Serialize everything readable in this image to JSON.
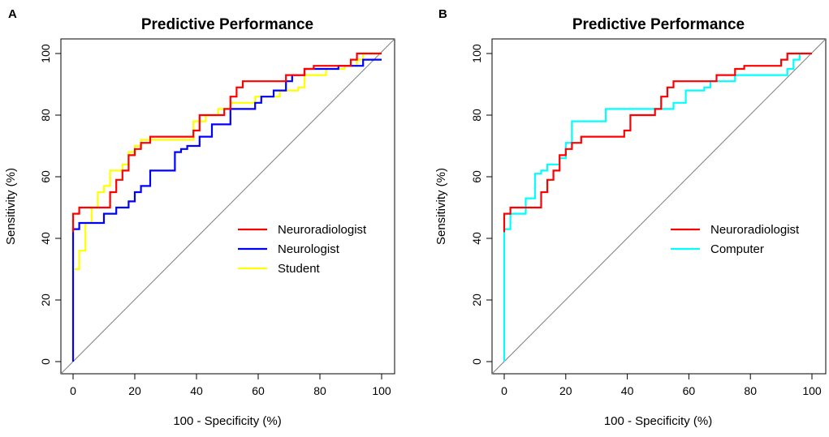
{
  "chart_data": [
    {
      "type": "line",
      "panel_label": "A",
      "title": "Predictive Performance",
      "xlabel": "100 - Specificity (%)",
      "ylabel": "Sensitivity (%)",
      "xlim": [
        0,
        100
      ],
      "ylim": [
        0,
        100
      ],
      "xticks": [
        "0",
        "20",
        "40",
        "60",
        "80",
        "100"
      ],
      "yticks": [
        "0",
        "20",
        "40",
        "60",
        "80",
        "100"
      ],
      "diagonal_color": "#808080",
      "legend_position": "center-right",
      "series": [
        {
          "name": "Neuroradiologist",
          "color": "#ff0000",
          "points": [
            [
              0,
              42
            ],
            [
              0,
              48
            ],
            [
              2,
              48
            ],
            [
              2,
              50
            ],
            [
              12,
              50
            ],
            [
              12,
              55
            ],
            [
              14,
              55
            ],
            [
              14,
              59
            ],
            [
              16,
              59
            ],
            [
              16,
              62
            ],
            [
              18,
              62
            ],
            [
              18,
              67
            ],
            [
              20,
              67
            ],
            [
              20,
              69
            ],
            [
              22,
              69
            ],
            [
              22,
              71
            ],
            [
              25,
              71
            ],
            [
              25,
              73
            ],
            [
              39,
              73
            ],
            [
              39,
              75
            ],
            [
              41,
              75
            ],
            [
              41,
              80
            ],
            [
              49,
              80
            ],
            [
              49,
              82
            ],
            [
              51,
              82
            ],
            [
              51,
              86
            ],
            [
              53,
              86
            ],
            [
              53,
              89
            ],
            [
              55,
              89
            ],
            [
              55,
              91
            ],
            [
              69,
              91
            ],
            [
              69,
              93
            ],
            [
              75,
              93
            ],
            [
              75,
              95
            ],
            [
              78,
              95
            ],
            [
              78,
              96
            ],
            [
              90,
              96
            ],
            [
              90,
              98
            ],
            [
              92,
              98
            ],
            [
              92,
              100
            ],
            [
              100,
              100
            ]
          ]
        },
        {
          "name": "Neurologist",
          "color": "#0000ff",
          "points": [
            [
              0,
              0
            ],
            [
              0,
              43
            ],
            [
              2,
              43
            ],
            [
              2,
              45
            ],
            [
              10,
              45
            ],
            [
              10,
              48
            ],
            [
              14,
              48
            ],
            [
              14,
              50
            ],
            [
              18,
              50
            ],
            [
              18,
              52
            ],
            [
              20,
              52
            ],
            [
              20,
              55
            ],
            [
              22,
              55
            ],
            [
              22,
              57
            ],
            [
              25,
              57
            ],
            [
              25,
              62
            ],
            [
              33,
              62
            ],
            [
              33,
              68
            ],
            [
              35,
              68
            ],
            [
              35,
              69
            ],
            [
              37,
              69
            ],
            [
              37,
              70
            ],
            [
              41,
              70
            ],
            [
              41,
              73
            ],
            [
              45,
              73
            ],
            [
              45,
              77
            ],
            [
              51,
              77
            ],
            [
              51,
              82
            ],
            [
              59,
              82
            ],
            [
              59,
              84
            ],
            [
              61,
              84
            ],
            [
              61,
              86
            ],
            [
              65,
              86
            ],
            [
              65,
              88
            ],
            [
              69,
              88
            ],
            [
              69,
              91
            ],
            [
              71,
              91
            ],
            [
              71,
              93
            ],
            [
              75,
              93
            ],
            [
              75,
              95
            ],
            [
              86,
              95
            ],
            [
              86,
              96
            ],
            [
              94,
              96
            ],
            [
              94,
              98
            ],
            [
              100,
              98
            ]
          ]
        },
        {
          "name": "Student",
          "color": "#ffff00",
          "points": [
            [
              0,
              30
            ],
            [
              2,
              30
            ],
            [
              2,
              36
            ],
            [
              4,
              36
            ],
            [
              4,
              45
            ],
            [
              6,
              45
            ],
            [
              6,
              50
            ],
            [
              8,
              50
            ],
            [
              8,
              55
            ],
            [
              10,
              55
            ],
            [
              10,
              57
            ],
            [
              12,
              57
            ],
            [
              12,
              62
            ],
            [
              16,
              62
            ],
            [
              16,
              64
            ],
            [
              18,
              64
            ],
            [
              18,
              68
            ],
            [
              20,
              68
            ],
            [
              20,
              70
            ],
            [
              22,
              70
            ],
            [
              22,
              72
            ],
            [
              39,
              72
            ],
            [
              39,
              78
            ],
            [
              43,
              78
            ],
            [
              43,
              80
            ],
            [
              47,
              80
            ],
            [
              47,
              82
            ],
            [
              51,
              82
            ],
            [
              51,
              84
            ],
            [
              59,
              84
            ],
            [
              59,
              86
            ],
            [
              67,
              86
            ],
            [
              67,
              88
            ],
            [
              73,
              88
            ],
            [
              73,
              89
            ],
            [
              75,
              89
            ],
            [
              75,
              93
            ],
            [
              82,
              93
            ],
            [
              82,
              95
            ],
            [
              88,
              95
            ],
            [
              88,
              96
            ],
            [
              92,
              96
            ],
            [
              92,
              98
            ],
            [
              94,
              98
            ],
            [
              94,
              100
            ],
            [
              100,
              100
            ]
          ]
        }
      ]
    },
    {
      "type": "line",
      "panel_label": "B",
      "title": "Predictive Performance",
      "xlabel": "100 - Specificity (%)",
      "ylabel": "Sensitivity (%)",
      "xlim": [
        0,
        100
      ],
      "ylim": [
        0,
        100
      ],
      "xticks": [
        "0",
        "20",
        "40",
        "60",
        "80",
        "100"
      ],
      "yticks": [
        "0",
        "20",
        "40",
        "60",
        "80",
        "100"
      ],
      "diagonal_color": "#808080",
      "legend_position": "center-right",
      "series": [
        {
          "name": "Neuroradiologist",
          "color": "#ff0000",
          "points": [
            [
              0,
              42
            ],
            [
              0,
              48
            ],
            [
              2,
              48
            ],
            [
              2,
              50
            ],
            [
              12,
              50
            ],
            [
              12,
              55
            ],
            [
              14,
              55
            ],
            [
              14,
              59
            ],
            [
              16,
              59
            ],
            [
              16,
              62
            ],
            [
              18,
              62
            ],
            [
              18,
              67
            ],
            [
              20,
              67
            ],
            [
              20,
              69
            ],
            [
              22,
              69
            ],
            [
              22,
              71
            ],
            [
              25,
              71
            ],
            [
              25,
              73
            ],
            [
              39,
              73
            ],
            [
              39,
              75
            ],
            [
              41,
              75
            ],
            [
              41,
              80
            ],
            [
              49,
              80
            ],
            [
              49,
              82
            ],
            [
              51,
              82
            ],
            [
              51,
              86
            ],
            [
              53,
              86
            ],
            [
              53,
              89
            ],
            [
              55,
              89
            ],
            [
              55,
              91
            ],
            [
              69,
              91
            ],
            [
              69,
              93
            ],
            [
              75,
              93
            ],
            [
              75,
              95
            ],
            [
              78,
              95
            ],
            [
              78,
              96
            ],
            [
              90,
              96
            ],
            [
              90,
              98
            ],
            [
              92,
              98
            ],
            [
              92,
              100
            ],
            [
              100,
              100
            ]
          ]
        },
        {
          "name": "Computer",
          "color": "#00ffff",
          "points": [
            [
              0,
              0
            ],
            [
              0,
              43
            ],
            [
              2,
              43
            ],
            [
              2,
              48
            ],
            [
              7,
              48
            ],
            [
              7,
              53
            ],
            [
              10,
              53
            ],
            [
              10,
              61
            ],
            [
              12,
              61
            ],
            [
              12,
              62
            ],
            [
              14,
              62
            ],
            [
              14,
              64
            ],
            [
              18,
              64
            ],
            [
              18,
              66
            ],
            [
              20,
              66
            ],
            [
              20,
              71
            ],
            [
              22,
              71
            ],
            [
              22,
              78
            ],
            [
              33,
              78
            ],
            [
              33,
              82
            ],
            [
              55,
              82
            ],
            [
              55,
              84
            ],
            [
              59,
              84
            ],
            [
              59,
              88
            ],
            [
              65,
              88
            ],
            [
              65,
              89
            ],
            [
              67,
              89
            ],
            [
              67,
              91
            ],
            [
              75,
              91
            ],
            [
              75,
              93
            ],
            [
              92,
              93
            ],
            [
              92,
              95
            ],
            [
              94,
              95
            ],
            [
              94,
              98
            ],
            [
              96,
              98
            ],
            [
              96,
              100
            ],
            [
              100,
              100
            ]
          ]
        }
      ]
    }
  ]
}
